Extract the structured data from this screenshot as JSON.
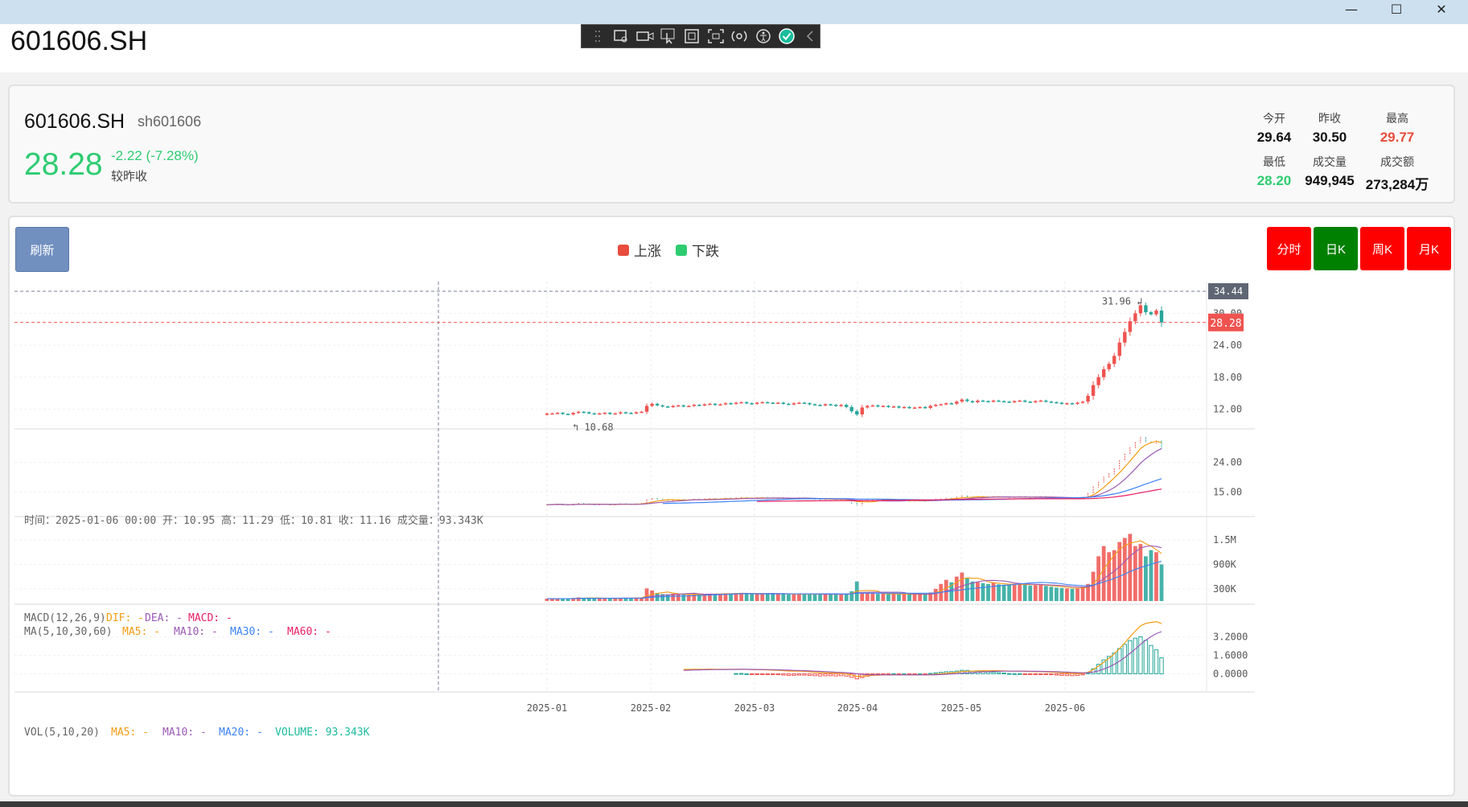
{
  "window": {
    "title": "601606.SH",
    "minimize": "—",
    "maximize": "☐",
    "close": "✕"
  },
  "toolbar": {
    "icons": [
      "grip-icon",
      "screen-capture-icon",
      "video-icon",
      "pointer-select-icon",
      "frame-icon",
      "region-icon",
      "broadcast-icon",
      "accessibility-icon",
      "check-icon",
      "collapse-icon"
    ]
  },
  "quote": {
    "code": "601606.SH",
    "subcode": "sh601606",
    "price": "28.28",
    "change": "-2.22 (-7.28%)",
    "change_label": "较昨收",
    "stats": [
      {
        "label": "今开",
        "value": "29.64",
        "color": "#111111"
      },
      {
        "label": "昨收",
        "value": "30.50",
        "color": "#111111"
      },
      {
        "label": "最高",
        "value": "29.77",
        "color": "#e74c3c"
      },
      {
        "label": "最低",
        "value": "28.20",
        "color": "#2ecc71"
      },
      {
        "label": "成交量",
        "value": "949,945",
        "color": "#111111"
      },
      {
        "label": "成交额",
        "value": "273,284万",
        "color": "#111111"
      }
    ]
  },
  "controls": {
    "refresh": "刷新",
    "legend_up": "上涨",
    "legend_down": "下跌",
    "periods": [
      {
        "label": "分时",
        "color": "#ff0000"
      },
      {
        "label": "日K",
        "color": "#008000"
      },
      {
        "label": "周K",
        "color": "#ff0000"
      },
      {
        "label": "月K",
        "color": "#ff0000"
      }
    ]
  },
  "colors": {
    "up": "#ef5350",
    "down": "#26a69a",
    "ma5": "#f39c12",
    "ma10": "#9b59b6",
    "ma20": "#3b82f6",
    "ma60": "#e91e63"
  },
  "chart_data": {
    "type": "candlestick",
    "tooltip": "时间：2025-01-06 00:00   开：10.95   高：11.29   低：10.81   收：11.16   成交量：93.343K",
    "x_ticks": [
      "2025-01",
      "2025-02",
      "2025-03",
      "2025-04",
      "2025-05",
      "2025-06"
    ],
    "price_axis": {
      "ticks": [
        "30.00",
        "24.00",
        "18.00",
        "12.00"
      ],
      "ylim": [
        9.5,
        34.44
      ]
    },
    "crosshair_value": "34.44",
    "last_price": "28.28",
    "max_label": "31.96",
    "min_label": "10.68",
    "closes": [
      11.16,
      11.2,
      11.3,
      11.1,
      11.0,
      11.3,
      11.5,
      11.4,
      11.2,
      11.1,
      11.2,
      11.3,
      11.1,
      11.2,
      11.4,
      11.3,
      11.2,
      11.4,
      11.5,
      12.6,
      13.0,
      12.7,
      12.5,
      12.4,
      12.6,
      12.7,
      12.5,
      12.6,
      12.8,
      12.7,
      12.9,
      13.0,
      12.8,
      12.9,
      13.1,
      13.0,
      13.2,
      13.3,
      13.1,
      13.0,
      13.2,
      13.3,
      13.2,
      13.1,
      13.2,
      13.0,
      12.9,
      13.1,
      13.2,
      13.1,
      12.9,
      12.8,
      12.7,
      12.9,
      12.8,
      12.6,
      12.8,
      12.4,
      11.6,
      11.0,
      12.3,
      12.6,
      12.7,
      12.5,
      12.6,
      12.4,
      12.5,
      12.3,
      12.4,
      12.2,
      12.3,
      12.4,
      12.2,
      12.6,
      12.8,
      12.9,
      13.1,
      13.0,
      13.4,
      13.8,
      13.5,
      13.3,
      13.6,
      13.5,
      13.4,
      13.6,
      13.5,
      13.4,
      13.3,
      13.5,
      13.6,
      13.4,
      13.3,
      13.5,
      13.6,
      13.4,
      13.3,
      13.2,
      13.0,
      13.1,
      13.0,
      13.2,
      13.4,
      14.5,
      16.5,
      18.0,
      19.5,
      20.5,
      22.0,
      24.5,
      26.5,
      28.5,
      30.0,
      31.5,
      30.2,
      29.8,
      30.5,
      28.28
    ],
    "volume_axis": {
      "ticks": [
        "1.5M",
        "900K",
        "300K"
      ]
    },
    "volumes": [
      60,
      55,
      58,
      62,
      57,
      70,
      90,
      80,
      75,
      65,
      62,
      70,
      68,
      66,
      72,
      78,
      76,
      82,
      85,
      310,
      260,
      200,
      170,
      165,
      180,
      160,
      155,
      150,
      175,
      170,
      165,
      180,
      170,
      175,
      190,
      185,
      195,
      200,
      180,
      175,
      170,
      185,
      190,
      180,
      175,
      170,
      165,
      180,
      175,
      170,
      165,
      160,
      170,
      175,
      165,
      160,
      170,
      180,
      240,
      480,
      200,
      190,
      185,
      175,
      180,
      170,
      175,
      165,
      170,
      160,
      165,
      170,
      160,
      210,
      300,
      420,
      520,
      460,
      600,
      700,
      560,
      480,
      460,
      440,
      420,
      450,
      410,
      400,
      390,
      420,
      430,
      400,
      380,
      390,
      410,
      370,
      350,
      330,
      320,
      310,
      300,
      320,
      340,
      420,
      720,
      1100,
      1350,
      1200,
      1250,
      1450,
      1550,
      1650,
      1350,
      1400,
      1100,
      1250,
      1200,
      900
    ],
    "ma_panel": {
      "label": "MA(5,10,30,60)",
      "items": [
        "MA5: -",
        "MA10: -",
        "MA30: -",
        "MA60: -"
      ],
      "ticks": [
        "24.00",
        "15.00"
      ]
    },
    "vol_panel": {
      "label": "VOL(5,10,20)",
      "items": [
        "MA5: -",
        "MA10: -",
        "MA20: -",
        "VOLUME: 93.343K"
      ]
    },
    "macd_panel": {
      "label": "MACD(12,26,9)",
      "items": [
        "DIF: -",
        "DEA: -",
        "MACD: -"
      ],
      "ticks": [
        "3.2000",
        "1.6000",
        "0.0000"
      ]
    }
  }
}
